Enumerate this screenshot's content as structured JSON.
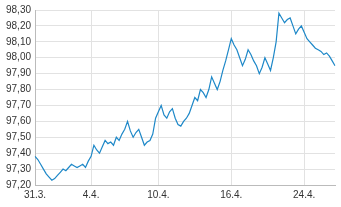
{
  "chart_data": {
    "type": "line",
    "color": "#1e88c8",
    "grid": true,
    "categories": [
      "31.3.",
      null,
      null,
      null,
      null,
      null,
      null,
      null,
      null,
      null,
      null,
      null,
      null,
      null,
      null,
      null,
      null,
      null,
      null,
      null,
      "4.4.",
      null,
      null,
      null,
      null,
      null,
      null,
      null,
      null,
      null,
      null,
      null,
      null,
      null,
      null,
      null,
      null,
      null,
      null,
      null,
      null,
      null,
      null,
      null,
      "10.4.",
      null,
      null,
      null,
      null,
      null,
      null,
      null,
      null,
      null,
      null,
      null,
      null,
      null,
      null,
      null,
      null,
      null,
      null,
      null,
      null,
      null,
      null,
      null,
      null,
      null,
      "16.4.",
      null,
      null,
      null,
      null,
      null,
      null,
      null,
      null,
      null,
      null,
      null,
      null,
      null,
      null,
      null,
      null,
      null,
      null,
      null,
      null,
      null,
      null,
      null,
      null,
      null,
      "24.4.",
      null,
      null,
      null,
      null,
      null,
      null,
      null,
      null,
      null,
      null,
      null
    ],
    "values": [
      97.38,
      97.36,
      97.33,
      97.3,
      97.27,
      97.25,
      97.23,
      97.24,
      97.26,
      97.28,
      97.3,
      97.29,
      97.31,
      97.33,
      97.32,
      97.31,
      97.32,
      97.33,
      97.31,
      97.35,
      97.38,
      97.45,
      97.42,
      97.4,
      97.44,
      97.48,
      97.46,
      97.47,
      97.45,
      97.5,
      97.48,
      97.52,
      97.55,
      97.6,
      97.54,
      97.5,
      97.53,
      97.55,
      97.5,
      97.45,
      97.47,
      97.48,
      97.52,
      97.62,
      97.66,
      97.7,
      97.64,
      97.62,
      97.66,
      97.68,
      97.62,
      97.58,
      97.57,
      97.6,
      97.62,
      97.65,
      97.7,
      97.75,
      97.73,
      97.8,
      97.78,
      97.75,
      97.8,
      97.88,
      97.84,
      97.8,
      97.85,
      97.92,
      97.98,
      98.05,
      98.12,
      98.08,
      98.05,
      98.0,
      97.95,
      97.99,
      98.05,
      98.02,
      97.98,
      97.95,
      97.9,
      97.94,
      98.0,
      97.96,
      97.92,
      98.0,
      98.1,
      98.28,
      98.25,
      98.22,
      98.24,
      98.25,
      98.2,
      98.15,
      98.18,
      98.2,
      98.16,
      98.12,
      98.1,
      98.08,
      98.06,
      98.05,
      98.04,
      98.02,
      98.03,
      98.01,
      97.98,
      97.95
    ],
    "ylim": [
      97.2,
      98.3
    ],
    "yticks": [
      {
        "value": 97.2,
        "label": "97,20"
      },
      {
        "value": 97.3,
        "label": "97,30"
      },
      {
        "value": 97.4,
        "label": "97,40"
      },
      {
        "value": 97.5,
        "label": "97,50"
      },
      {
        "value": 97.6,
        "label": "97,60"
      },
      {
        "value": 97.7,
        "label": "97,70"
      },
      {
        "value": 97.8,
        "label": "97,80"
      },
      {
        "value": 97.9,
        "label": "97,90"
      },
      {
        "value": 98.0,
        "label": "98,00"
      },
      {
        "value": 98.1,
        "label": "98,10"
      },
      {
        "value": 98.2,
        "label": "98,20"
      },
      {
        "value": 98.3,
        "label": "98,30"
      }
    ]
  }
}
